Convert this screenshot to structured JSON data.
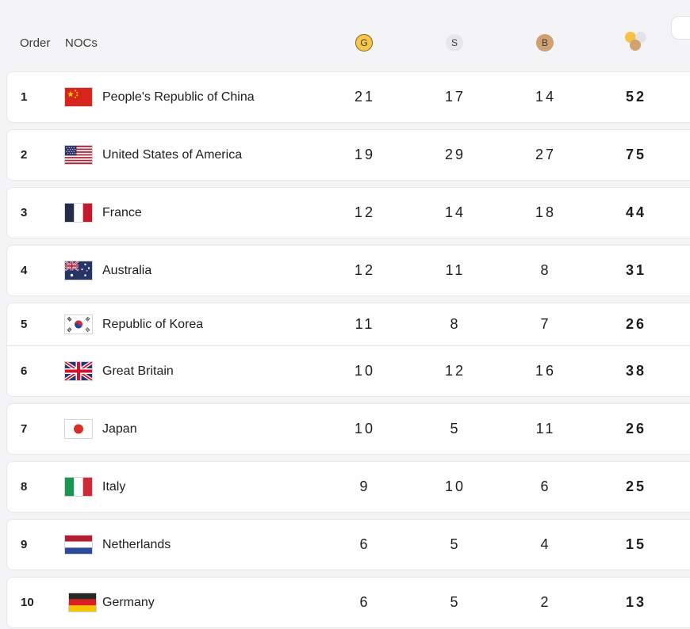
{
  "header": {
    "order_label": "Order",
    "nocs_label": "NOCs",
    "gold_label": "G",
    "silver_label": "S",
    "bronze_label": "B",
    "colors": {
      "gold": "#f6c245",
      "silver": "#e3e3e5",
      "bronze": "#d2a26e"
    }
  },
  "table": {
    "rows": [
      {
        "order": "1",
        "noc": "People's Republic of China",
        "flag": "cn",
        "gold": "21",
        "silver": "17",
        "bronze": "14",
        "total": "52"
      },
      {
        "order": "2",
        "noc": "United States of America",
        "flag": "us",
        "gold": "19",
        "silver": "29",
        "bronze": "27",
        "total": "75"
      },
      {
        "order": "3",
        "noc": "France",
        "flag": "fr",
        "gold": "12",
        "silver": "14",
        "bronze": "18",
        "total": "44"
      },
      {
        "order": "4",
        "noc": "Australia",
        "flag": "au",
        "gold": "12",
        "silver": "11",
        "bronze": "8",
        "total": "31"
      },
      {
        "order": "5",
        "noc": "Republic of Korea",
        "flag": "kr",
        "gold": "11",
        "silver": "8",
        "bronze": "7",
        "total": "26"
      },
      {
        "order": "6",
        "noc": "Great Britain",
        "flag": "gb",
        "gold": "10",
        "silver": "12",
        "bronze": "16",
        "total": "38"
      },
      {
        "order": "7",
        "noc": "Japan",
        "flag": "jp",
        "gold": "10",
        "silver": "5",
        "bronze": "11",
        "total": "26"
      },
      {
        "order": "8",
        "noc": "Italy",
        "flag": "it",
        "gold": "9",
        "silver": "10",
        "bronze": "6",
        "total": "25"
      },
      {
        "order": "9",
        "noc": "Netherlands",
        "flag": "nl",
        "gold": "6",
        "silver": "5",
        "bronze": "4",
        "total": "15"
      },
      {
        "order": "10",
        "noc": "Germany",
        "flag": "de",
        "gold": "6",
        "silver": "5",
        "bronze": "2",
        "total": "13"
      }
    ]
  }
}
